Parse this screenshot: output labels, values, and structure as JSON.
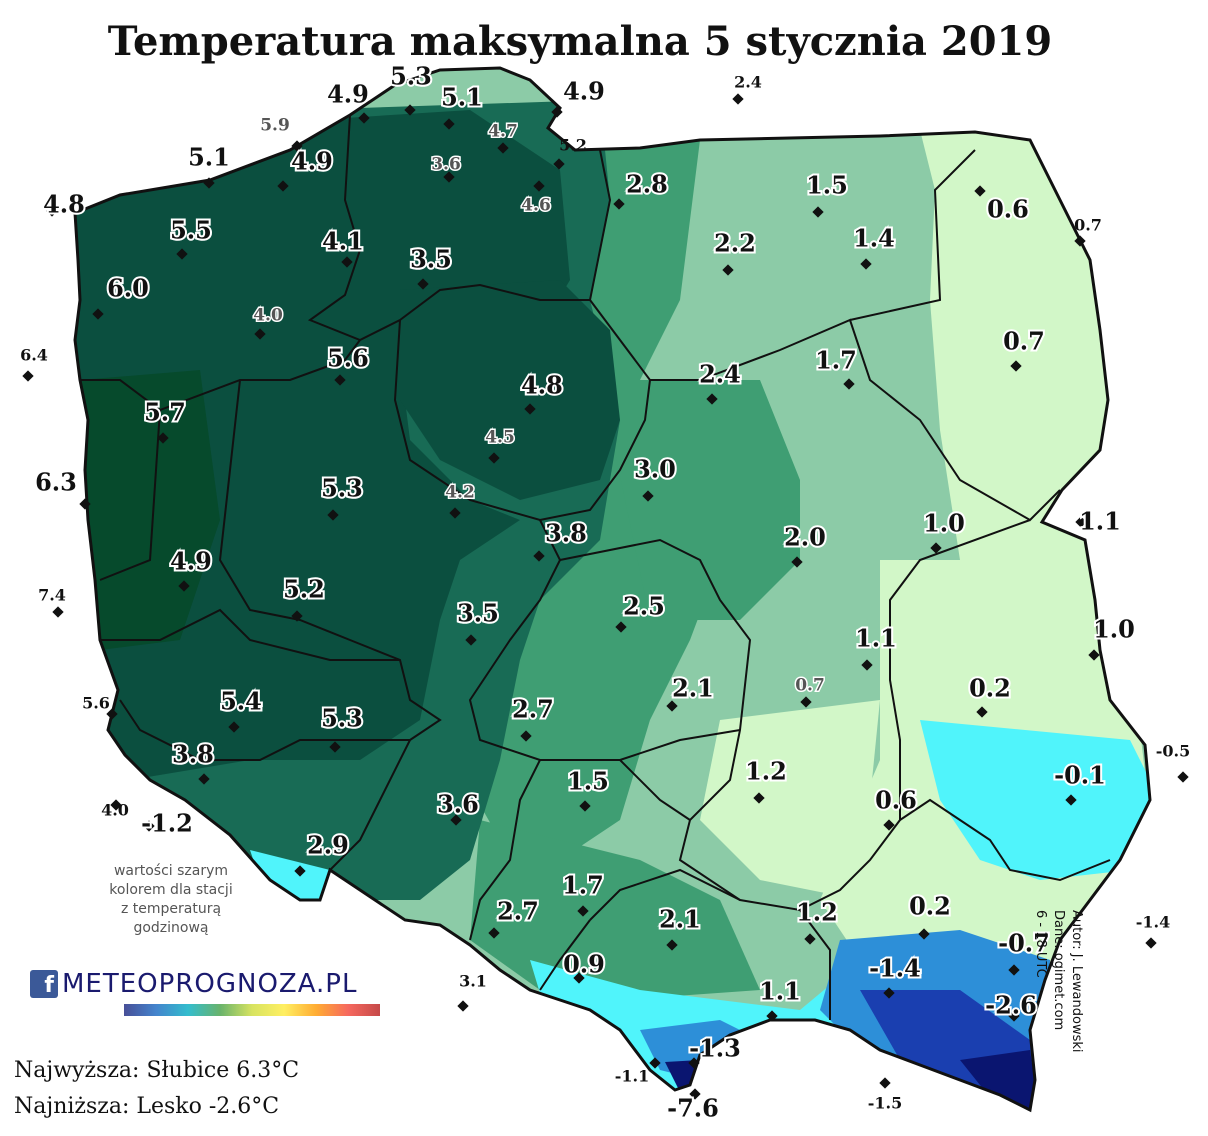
{
  "title": "Temperatura maksymalna 5 stycznia 2019",
  "note_lines": [
    "wartości szarym",
    "kolorem dla stacji",
    "z temperaturą",
    "godzinową"
  ],
  "extremes": {
    "highest": "Najwyższa: Słubice 6.3°C",
    "lowest": "Najniższa: Lesko -2.6°C"
  },
  "credits": [
    "Autor: J. Lewandowski",
    "Dane: ogimet.com",
    "6 - 18 UTC"
  ],
  "logo": {
    "icon": "facebook-icon",
    "text": "METEOPROGNOZA.PL"
  },
  "colors": {
    "band_4_plus": "#0b4f3f",
    "band_3": "#186b55",
    "band_2": "#3f9e73",
    "band_1": "#8ccba7",
    "band_0": "#d2f7c8",
    "band_minus1": "#50f4fb",
    "band_minus2": "#2d8fd8",
    "band_minus3": "#1a3fb0",
    "band_minus5": "#0a1570"
  },
  "stations": [
    {
      "value": "5.3",
      "style": "bold"
    },
    {
      "value": "4.9",
      "style": "bold"
    },
    {
      "value": "5.1",
      "style": "bold"
    },
    {
      "value": "4.9",
      "style": "bold"
    },
    {
      "value": "2.4",
      "style": "small"
    },
    {
      "value": "5.9",
      "style": "grey"
    },
    {
      "value": "4.7",
      "style": "grey"
    },
    {
      "value": "5.2",
      "style": "small"
    },
    {
      "value": "5.1",
      "style": "bold"
    },
    {
      "value": "4.9",
      "style": "bold"
    },
    {
      "value": "3.6",
      "style": "grey"
    },
    {
      "value": "2.8",
      "style": "bold"
    },
    {
      "value": "1.5",
      "style": "bold"
    },
    {
      "value": "4.8",
      "style": "bold"
    },
    {
      "value": "4.6",
      "style": "grey"
    },
    {
      "value": "0.6",
      "style": "bold"
    },
    {
      "value": "0.7",
      "style": "small"
    },
    {
      "value": "5.5",
      "style": "bold"
    },
    {
      "value": "4.1",
      "style": "bold"
    },
    {
      "value": "2.2",
      "style": "bold"
    },
    {
      "value": "1.4",
      "style": "bold"
    },
    {
      "value": "3.5",
      "style": "bold"
    },
    {
      "value": "6.0",
      "style": "bold"
    },
    {
      "value": "4.0",
      "style": "grey"
    },
    {
      "value": "0.7",
      "style": "bold"
    },
    {
      "value": "6.4",
      "style": "small"
    },
    {
      "value": "5.6",
      "style": "bold"
    },
    {
      "value": "1.7",
      "style": "bold"
    },
    {
      "value": "4.8",
      "style": "bold"
    },
    {
      "value": "2.4",
      "style": "bold"
    },
    {
      "value": "5.7",
      "style": "bold"
    },
    {
      "value": "4.5",
      "style": "grey"
    },
    {
      "value": "6.3",
      "style": "bold"
    },
    {
      "value": "5.3",
      "style": "bold"
    },
    {
      "value": "3.0",
      "style": "bold"
    },
    {
      "value": "4.2",
      "style": "grey"
    },
    {
      "value": "1.1",
      "style": "bold"
    },
    {
      "value": "1.0",
      "style": "bold"
    },
    {
      "value": "3.8",
      "style": "bold"
    },
    {
      "value": "2.0",
      "style": "bold"
    },
    {
      "value": "4.9",
      "style": "bold"
    },
    {
      "value": "7.4",
      "style": "small"
    },
    {
      "value": "5.2",
      "style": "bold"
    },
    {
      "value": "2.5",
      "style": "bold"
    },
    {
      "value": "3.5",
      "style": "bold"
    },
    {
      "value": "1.0",
      "style": "bold"
    },
    {
      "value": "1.1",
      "style": "bold"
    },
    {
      "value": "5.6",
      "style": "small"
    },
    {
      "value": "0.7",
      "style": "grey"
    },
    {
      "value": "2.1",
      "style": "bold"
    },
    {
      "value": "0.2",
      "style": "bold"
    },
    {
      "value": "5.4",
      "style": "bold"
    },
    {
      "value": "5.3",
      "style": "bold"
    },
    {
      "value": "2.7",
      "style": "bold"
    },
    {
      "value": "-0.5",
      "style": "small"
    },
    {
      "value": "3.8",
      "style": "bold"
    },
    {
      "value": "1.5",
      "style": "bold"
    },
    {
      "value": "1.2",
      "style": "bold"
    },
    {
      "value": "-0.1",
      "style": "bold"
    },
    {
      "value": "4.0",
      "style": "small"
    },
    {
      "value": "-1.2",
      "style": "bold"
    },
    {
      "value": "3.6",
      "style": "bold"
    },
    {
      "value": "0.6",
      "style": "bold"
    },
    {
      "value": "2.9",
      "style": "bold"
    },
    {
      "value": "1.7",
      "style": "bold"
    },
    {
      "value": "2.7",
      "style": "bold"
    },
    {
      "value": "2.1",
      "style": "bold"
    },
    {
      "value": "1.2",
      "style": "bold"
    },
    {
      "value": "0.2",
      "style": "bold"
    },
    {
      "value": "-1.4",
      "style": "small"
    },
    {
      "value": "-0.7",
      "style": "bold"
    },
    {
      "value": "0.9",
      "style": "bold"
    },
    {
      "value": "-1.4",
      "style": "bold"
    },
    {
      "value": "3.1",
      "style": "small"
    },
    {
      "value": "1.1",
      "style": "bold"
    },
    {
      "value": "-2.6",
      "style": "bold"
    },
    {
      "value": "-1.3",
      "style": "bold"
    },
    {
      "value": "-1.1",
      "style": "small"
    },
    {
      "value": "-1.5",
      "style": "small"
    },
    {
      "value": "-7.6",
      "style": "bold"
    }
  ]
}
